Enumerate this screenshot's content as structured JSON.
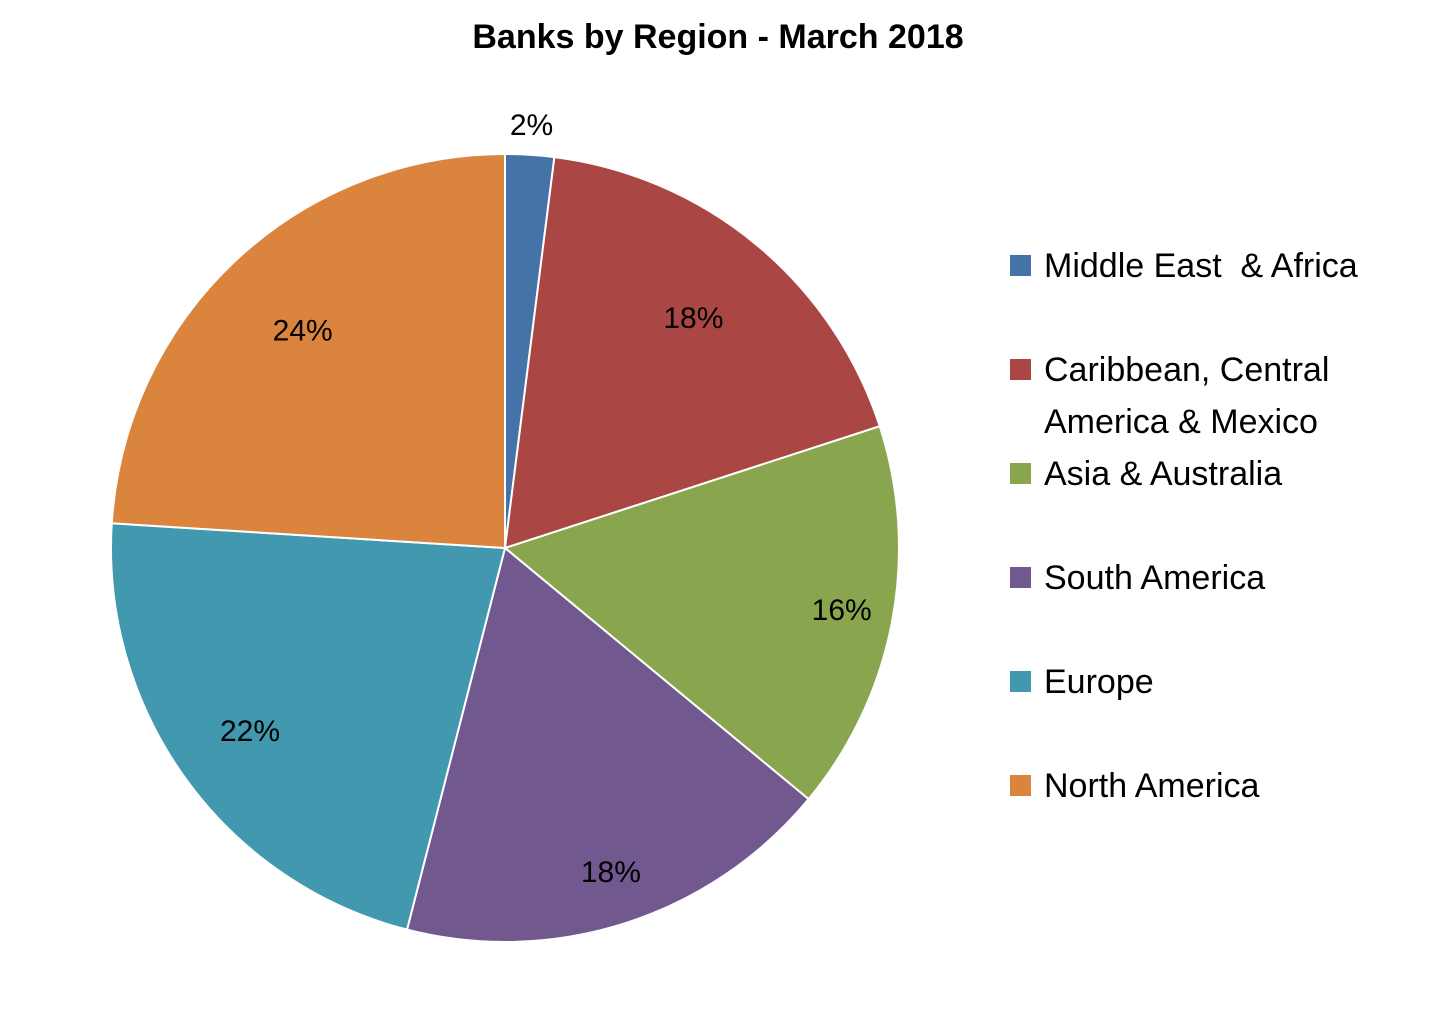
{
  "chart_data": {
    "type": "pie",
    "title": "Banks by Region - March 2018",
    "categories": [
      "Middle East  & Africa",
      "Caribbean, Central America & Mexico",
      "Asia & Australia",
      "South America",
      "Europe",
      "North America"
    ],
    "values": [
      2,
      18,
      16,
      18,
      22,
      24
    ],
    "data_labels": [
      "2%",
      "18%",
      "16%",
      "18%",
      "22%",
      "24%"
    ],
    "colors": [
      "#4572A7",
      "#AA4643",
      "#89A54E",
      "#71588F",
      "#4198AF",
      "#DB843D"
    ],
    "legend_position": "right",
    "start_angle": "12 o'clock",
    "direction": "clockwise"
  }
}
